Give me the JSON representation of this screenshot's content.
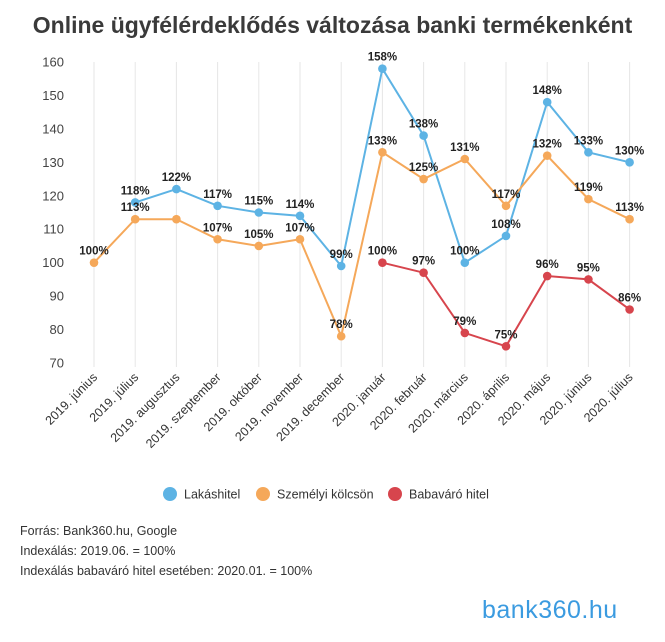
{
  "chart_data": {
    "type": "line",
    "title": "Online ügyfélérdeklődés változása banki termékenként",
    "categories": [
      "2019. június",
      "2019. július",
      "2019. augusztus",
      "2019. szeptember",
      "2019. október",
      "2019. november",
      "2019. december",
      "2020. január",
      "2020. február",
      "2020. március",
      "2020. április",
      "2020. május",
      "2020. június",
      "2020. július"
    ],
    "ylim": [
      70,
      160
    ],
    "yticks": [
      70,
      80,
      90,
      100,
      110,
      120,
      130,
      140,
      150,
      160
    ],
    "grid": "vertical",
    "legend_position": "bottom",
    "series": [
      {
        "name": "Lakáshitel",
        "color": "#5db3e4",
        "values": [
          null,
          118,
          122,
          117,
          115,
          114,
          99,
          158,
          138,
          100,
          108,
          148,
          133,
          130
        ],
        "labels": [
          "",
          "118%",
          "122%",
          "117%",
          "115%",
          "114%",
          "99%",
          "158%",
          "138%",
          "100%",
          "108%",
          "148%",
          "133%",
          "130%"
        ]
      },
      {
        "name": "Személyi kölcsön",
        "color": "#f5a85a",
        "values": [
          100,
          113,
          113,
          107,
          105,
          107,
          78,
          133,
          125,
          131,
          117,
          132,
          119,
          113
        ],
        "labels": [
          "100%",
          "113%",
          "",
          "107%",
          "105%",
          "107%",
          "78%",
          "133%",
          "125%",
          "131%",
          "117%",
          "132%",
          "119%",
          "113%"
        ]
      },
      {
        "name": "Babaváró hitel",
        "color": "#d7454d",
        "values": [
          null,
          null,
          null,
          null,
          null,
          null,
          null,
          100,
          97,
          79,
          75,
          96,
          95,
          86
        ],
        "labels": [
          "",
          "",
          "",
          "",
          "",
          "",
          "",
          "100%",
          "97%",
          "79%",
          "75%",
          "96%",
          "95%",
          "86%"
        ]
      }
    ]
  },
  "footer": {
    "line1": "Forrás: Bank360.hu, Google",
    "line2": "Indexálás: 2019.06. = 100%",
    "line3": "Indexálás babaváró hitel esetében: 2020.01. = 100%"
  },
  "logo": {
    "text": "bank360.hu"
  }
}
